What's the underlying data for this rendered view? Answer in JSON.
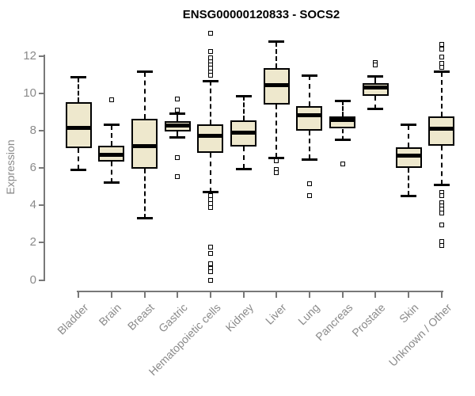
{
  "chart_data": {
    "type": "boxplot",
    "title": "ENSG00000120833 - SOCS2",
    "ylabel": "Expression",
    "xlabel": "",
    "yticks": [
      0,
      2,
      4,
      6,
      8,
      10,
      12
    ],
    "ylim": [
      -0.6,
      13.4
    ],
    "grid": false,
    "legend": false,
    "categories": [
      "Bladder",
      "Brain",
      "Breast",
      "Gastric",
      "Hematopoietic cells",
      "Kidney",
      "Liver",
      "Lung",
      "Pancreas",
      "Prostate",
      "Skin",
      "Unknown / Other"
    ],
    "series": [
      {
        "label": "Bladder",
        "whisker_low": 5.9,
        "q1": 7.05,
        "median": 8.15,
        "q3": 9.5,
        "whisker_high": 10.85,
        "outliers": []
      },
      {
        "label": "Brain",
        "whisker_low": 5.2,
        "q1": 6.35,
        "median": 6.7,
        "q3": 7.2,
        "whisker_high": 8.3,
        "outliers": [
          9.65
        ]
      },
      {
        "label": "Breast",
        "whisker_low": 3.3,
        "q1": 5.95,
        "median": 7.15,
        "q3": 8.65,
        "whisker_high": 11.15,
        "outliers": []
      },
      {
        "label": "Gastric",
        "whisker_low": 7.65,
        "q1": 7.95,
        "median": 8.25,
        "q3": 8.5,
        "whisker_high": 8.9,
        "outliers": [
          9.7,
          9.1,
          6.55,
          5.55
        ]
      },
      {
        "label": "Hematopoietic cells",
        "whisker_low": 4.7,
        "q1": 6.8,
        "median": 7.7,
        "q3": 8.35,
        "whisker_high": 10.65,
        "outliers": [
          13.2,
          12.25,
          11.9,
          11.7,
          11.5,
          11.35,
          11.15,
          10.95,
          4.5,
          4.3,
          4.1,
          3.9,
          1.75,
          1.4,
          0.85,
          0.6,
          0.45,
          0.0
        ]
      },
      {
        "label": "Kidney",
        "whisker_low": 5.95,
        "q1": 7.15,
        "median": 7.9,
        "q3": 8.55,
        "whisker_high": 9.85,
        "outliers": []
      },
      {
        "label": "Liver",
        "whisker_low": 6.55,
        "q1": 9.4,
        "median": 10.45,
        "q3": 11.35,
        "whisker_high": 12.75,
        "outliers": [
          6.4,
          5.9,
          5.75
        ]
      },
      {
        "label": "Lung",
        "whisker_low": 6.45,
        "q1": 8.0,
        "median": 8.8,
        "q3": 9.3,
        "whisker_high": 10.95,
        "outliers": [
          5.15,
          4.5
        ]
      },
      {
        "label": "Pancreas",
        "whisker_low": 7.5,
        "q1": 8.1,
        "median": 8.55,
        "q3": 8.75,
        "whisker_high": 9.6,
        "outliers": [
          6.2
        ]
      },
      {
        "label": "Prostate",
        "whisker_low": 9.15,
        "q1": 9.85,
        "median": 10.3,
        "q3": 10.55,
        "whisker_high": 10.9,
        "outliers": [
          11.65,
          11.5
        ]
      },
      {
        "label": "Skin",
        "whisker_low": 4.5,
        "q1": 6.0,
        "median": 6.65,
        "q3": 7.1,
        "whisker_high": 8.3,
        "outliers": []
      },
      {
        "label": "Unknown / Other",
        "whisker_low": 5.1,
        "q1": 7.2,
        "median": 8.1,
        "q3": 8.75,
        "whisker_high": 11.15,
        "outliers": [
          12.6,
          12.35,
          11.95,
          11.6,
          11.4,
          4.7,
          4.5,
          4.15,
          3.95,
          3.8,
          3.6,
          2.95,
          2.05,
          1.85
        ]
      }
    ]
  },
  "colors": {
    "box_fill": "#EEE8CD",
    "box_border": "#000000",
    "median": "#000000",
    "axis": "#787878",
    "axis_text": "#8a8a8a",
    "title_text": "#000000",
    "background": "#ffffff"
  }
}
